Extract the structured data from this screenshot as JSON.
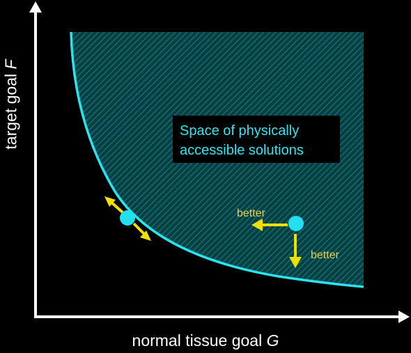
{
  "axes": {
    "x_label": "normal tissue goal",
    "x_symbol": "G",
    "y_label": "target goal",
    "y_symbol": "F"
  },
  "region": {
    "label_line1": "Space of physically",
    "label_line2": "accessible solutions",
    "fill_color": "#0b5b5f",
    "hatch_color": "#0e7b80"
  },
  "curve": {
    "name": "pareto-front",
    "color": "#29e3ef"
  },
  "points": [
    {
      "name": "pareto-optimal-point",
      "color": "#22e0ee"
    },
    {
      "name": "inner-point",
      "color": "#22e0ee"
    }
  ],
  "annotations": {
    "better_left": "better",
    "better_down": "better",
    "arrow_color": "#f0e000"
  }
}
